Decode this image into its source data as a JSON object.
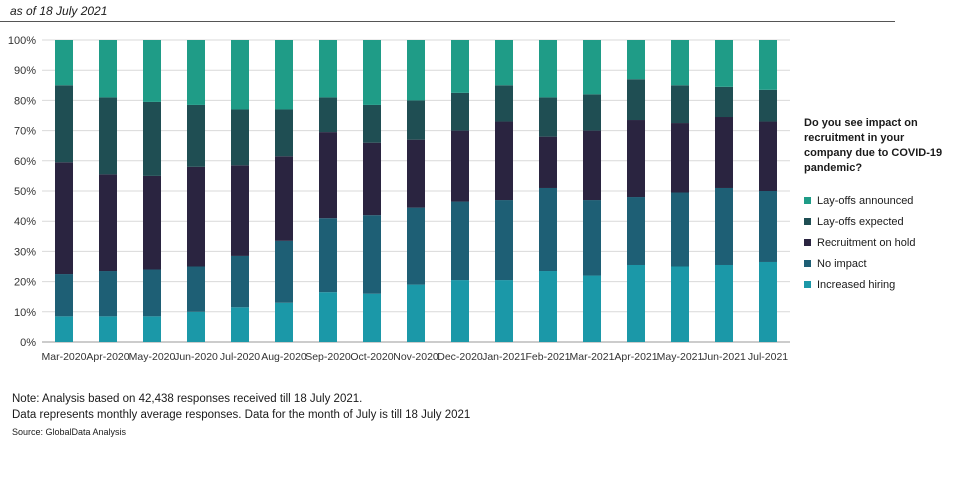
{
  "header": {
    "subtitle": "as of 18 July 2021"
  },
  "chart_data": {
    "type": "bar",
    "stacked": true,
    "categories": [
      "Mar-2020",
      "Apr-2020",
      "May-2020",
      "Jun-2020",
      "Jul-2020",
      "Aug-2020",
      "Sep-2020",
      "Oct-2020",
      "Nov-2020",
      "Dec-2020",
      "Jan-2021",
      "Feb-2021",
      "Mar-2021",
      "Apr-2021",
      "May-2021",
      "Jun-2021",
      "Jul-2021"
    ],
    "yticks": [
      "0%",
      "10%",
      "20%",
      "30%",
      "40%",
      "50%",
      "60%",
      "70%",
      "80%",
      "90%",
      "100%"
    ],
    "ylim": [
      0,
      100
    ],
    "grid": true,
    "legend_title": "Do you see impact on recruitment in your company due to COVID-19 pandemic?",
    "legend_position": "right",
    "series": [
      {
        "name": "Increased hiring",
        "color": "#1b98a8",
        "values": [
          8.5,
          8.5,
          8.5,
          10,
          11.5,
          13,
          16.5,
          16,
          19,
          20.5,
          20.5,
          23.5,
          22,
          25.5,
          25,
          25.5,
          26.5
        ]
      },
      {
        "name": "No impact",
        "color": "#1e5f75",
        "values": [
          14,
          15,
          15.5,
          15,
          17,
          20.5,
          24.5,
          26,
          25.5,
          26,
          26.5,
          27.5,
          25,
          22.5,
          24.5,
          25.5,
          23.5
        ]
      },
      {
        "name": "Recruitment on hold",
        "color": "#2a2440",
        "values": [
          37,
          32,
          31,
          33,
          30,
          28,
          28.5,
          24,
          22.5,
          23.5,
          26,
          17,
          23,
          25.5,
          23,
          23.5,
          23
        ]
      },
      {
        "name": "Lay-offs expected",
        "color": "#1f4e53",
        "values": [
          25.5,
          25.5,
          24.5,
          20.5,
          18.5,
          15.5,
          11.5,
          12.5,
          13,
          12.5,
          12,
          13,
          12,
          13.5,
          12.5,
          10,
          10.5
        ]
      },
      {
        "name": "Lay-offs announced",
        "color": "#1f9c87",
        "values": [
          15,
          19,
          20.5,
          21.5,
          23,
          23,
          19,
          21.5,
          20,
          17.5,
          15,
          19,
          18,
          13,
          15,
          15.5,
          16.5
        ]
      }
    ]
  },
  "notes": {
    "line1": "Note: Analysis based on 42,438 responses received till 18 July 2021.",
    "line2": "Data represents monthly average responses. Data for the month of July is till 18 July 2021",
    "source": "Source: GlobalData Analysis"
  }
}
